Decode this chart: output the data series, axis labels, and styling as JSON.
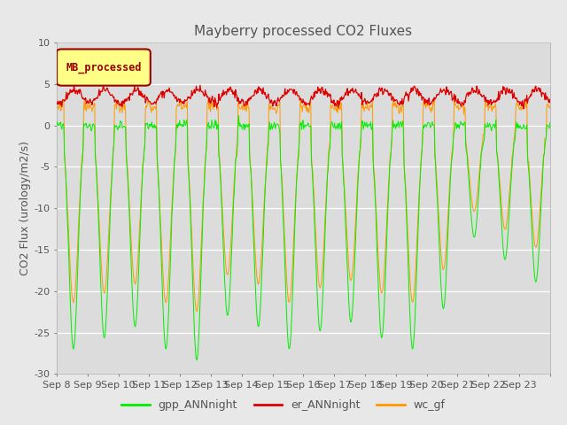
{
  "title": "Mayberry processed CO2 Fluxes",
  "ylabel": "CO2 Flux (urology/m2/s)",
  "xlabel": "",
  "ylim": [
    -30,
    10
  ],
  "xlim": [
    0,
    16
  ],
  "yticks": [
    10,
    5,
    0,
    -5,
    -10,
    -15,
    -20,
    -25,
    -30
  ],
  "xtick_labels": [
    "Sep 8",
    "Sep 9",
    "Sep 10",
    "Sep 11",
    "Sep 12",
    "Sep 13",
    "Sep 14",
    "Sep 15",
    "Sep 16",
    "Sep 17",
    "Sep 18",
    "Sep 19",
    "Sep 20",
    "Sep 21",
    "Sep 22",
    "Sep 23"
  ],
  "legend_box_label": "MB_processed",
  "legend_box_facecolor": "#FFFF88",
  "legend_box_edgecolor": "#990000",
  "legend_labels": [
    "gpp_ANNnight",
    "er_ANNnight",
    "wc_gf"
  ],
  "line_colors": [
    "#00EE00",
    "#DD0000",
    "#FF9900"
  ],
  "background_color": "#E8E8E8",
  "title_fontsize": 11,
  "axis_fontsize": 9,
  "tick_fontsize": 8
}
